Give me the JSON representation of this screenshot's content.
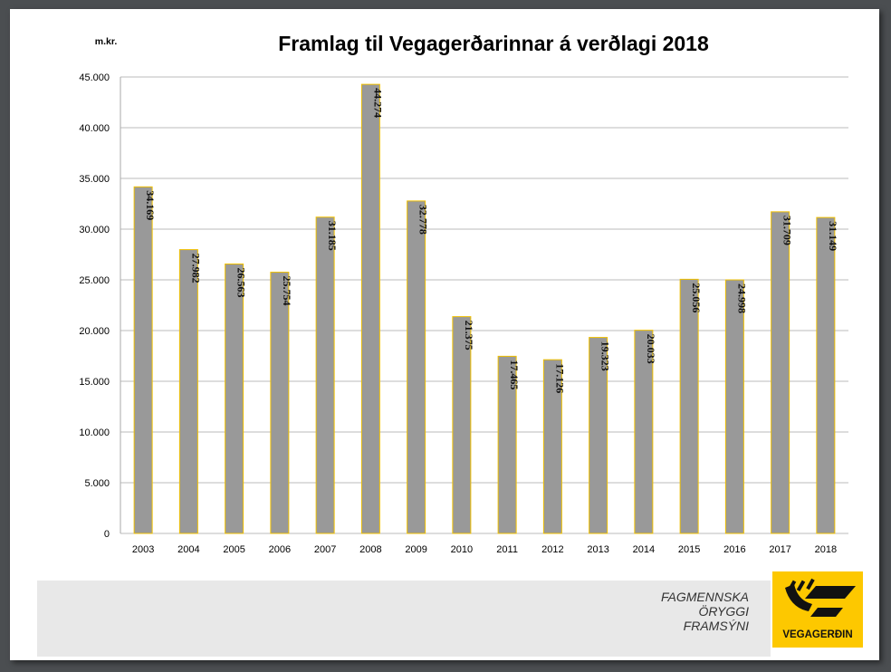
{
  "chart_data": {
    "type": "bar",
    "title": "Framlag til Vegagerðarinnar á verðlagi 2018",
    "ylabel": "m.kr.",
    "xlabel": "",
    "categories": [
      "2003",
      "2004",
      "2005",
      "2006",
      "2007",
      "2008",
      "2009",
      "2010",
      "2011",
      "2012",
      "2013",
      "2014",
      "2015",
      "2016",
      "2017",
      "2018"
    ],
    "values": [
      34169,
      27982,
      26563,
      25754,
      31185,
      44274,
      32778,
      21375,
      17465,
      17126,
      19323,
      20033,
      25056,
      24998,
      31709,
      31149
    ],
    "data_labels": [
      "34.169",
      "27.982",
      "26.563",
      "25.754",
      "31.185",
      "44.274",
      "32.778",
      "21.375",
      "17.465",
      "17.126",
      "19.323",
      "20.033",
      "25.056",
      "24.998",
      "31.709",
      "31.149"
    ],
    "ylim": [
      0,
      45000
    ],
    "yticks": [
      "0",
      "5.000",
      "10.000",
      "15.000",
      "20.000",
      "25.000",
      "30.000",
      "35.000",
      "40.000",
      "45.000"
    ],
    "grid": true,
    "legend": "none",
    "bar_color": "#999999",
    "bar_edge_color": "#f0c000"
  },
  "footer": {
    "slogan": [
      "FAGMENNSKA",
      "ÖRYGGI",
      "FRAMSÝNI"
    ],
    "logo_text": "VEGAGERÐIN",
    "logo_color": "#fdc800"
  }
}
